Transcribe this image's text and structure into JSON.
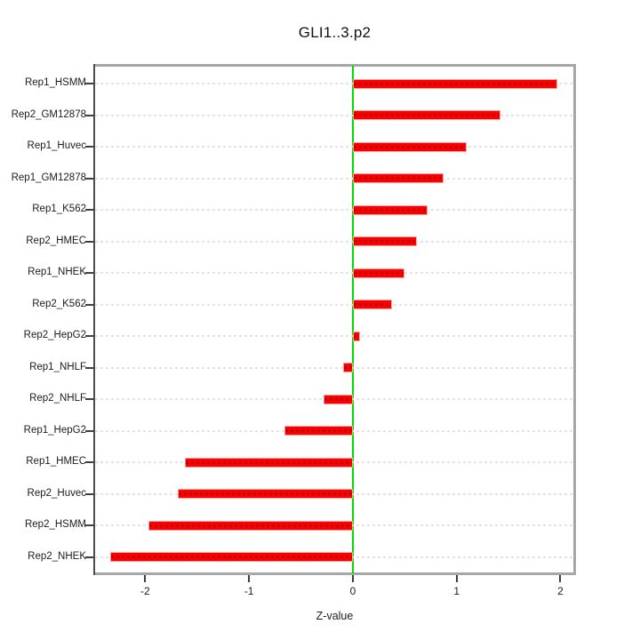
{
  "chart_data": {
    "type": "bar",
    "orientation": "horizontal",
    "title": "GLI1..3.p2",
    "xlabel": "Z-value",
    "ylabel": "",
    "categories": [
      "Rep1_HSMM",
      "Rep2_GM12878",
      "Rep1_Huvec",
      "Rep1_GM12878",
      "Rep1_K562",
      "Rep2_HMEC",
      "Rep1_NHEK",
      "Rep2_K562",
      "Rep2_HepG2",
      "Rep1_NHLF",
      "Rep2_NHLF",
      "Rep1_HepG2",
      "Rep1_HMEC",
      "Rep2_Huvec",
      "Rep2_HSMM",
      "Rep2_NHEK"
    ],
    "values": [
      1.97,
      1.42,
      1.1,
      0.87,
      0.72,
      0.62,
      0.5,
      0.38,
      0.07,
      -0.09,
      -0.28,
      -0.66,
      -1.62,
      -1.69,
      -1.97,
      -2.34
    ],
    "xlim": [
      -2.5,
      2.15
    ],
    "xticks": [
      "-2",
      "-1",
      "0",
      "1",
      "2"
    ],
    "xtick_values": [
      -2,
      -1,
      0,
      1,
      2
    ],
    "grid": true,
    "grid_style": "dashed",
    "legend": "none",
    "colors": {
      "bar": "#fb0000",
      "bar_edge": "#ffa1a1",
      "zero_line": "#00dd00",
      "gridline": "#e3e3e3",
      "box_border": "#a6a6a6",
      "axis_text": "#1c1c1c"
    }
  }
}
